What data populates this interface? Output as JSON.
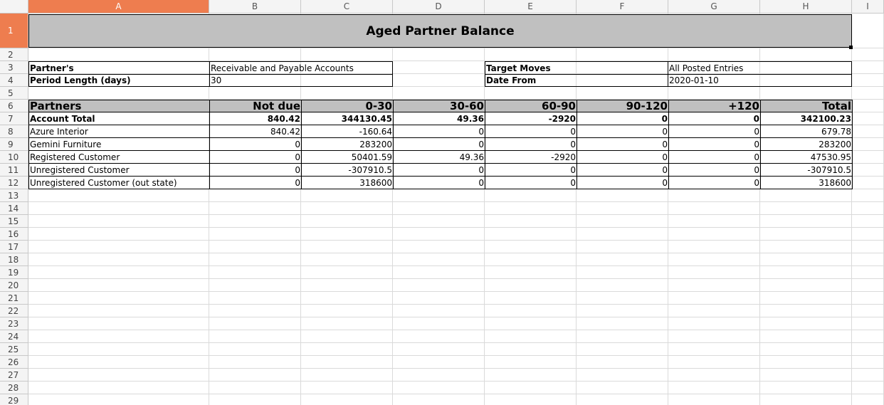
{
  "columns": [
    "A",
    "B",
    "C",
    "D",
    "E",
    "F",
    "G",
    "H",
    "I"
  ],
  "rows": [
    "1",
    "2",
    "3",
    "4",
    "5",
    "6",
    "7",
    "8",
    "9",
    "10",
    "11",
    "12",
    "13",
    "14",
    "15",
    "16",
    "17",
    "18",
    "19",
    "20",
    "21",
    "22",
    "23",
    "24",
    "25",
    "26",
    "27",
    "28",
    "29"
  ],
  "report": {
    "title": "Aged Partner Balance",
    "partners_label": "Partner's",
    "partners_value": "Receivable and Payable Accounts",
    "period_label": "Period Length (days)",
    "period_value": "30",
    "target_label": "Target Moves",
    "target_value": "All Posted Entries",
    "date_label": "Date From",
    "date_value": "2020-01-10"
  },
  "table": {
    "headers": [
      "Partners",
      "Not due",
      "0-30",
      "30-60",
      "60-90",
      "90-120",
      "+120",
      "Total"
    ],
    "rows": [
      [
        "Account Total",
        "840.42",
        "344130.45",
        "49.36",
        "-2920",
        "0",
        "0",
        "342100.23"
      ],
      [
        "Azure Interior",
        "840.42",
        "-160.64",
        "0",
        "0",
        "0",
        "0",
        "679.78"
      ],
      [
        "Gemini Furniture",
        "0",
        "283200",
        "0",
        "0",
        "0",
        "0",
        "283200"
      ],
      [
        "Registered Customer",
        "0",
        "50401.59",
        "49.36",
        "-2920",
        "0",
        "0",
        "47530.95"
      ],
      [
        "Unregistered Customer",
        "0",
        "-307910.5",
        "0",
        "0",
        "0",
        "0",
        "-307910.5"
      ],
      [
        "Unregistered Customer (out state)",
        "0",
        "318600",
        "0",
        "0",
        "0",
        "0",
        "318600"
      ]
    ]
  },
  "colors": {
    "selected_header": "#ee7d4f",
    "title_fill": "#c0c0c0",
    "gridline": "#dadada"
  }
}
